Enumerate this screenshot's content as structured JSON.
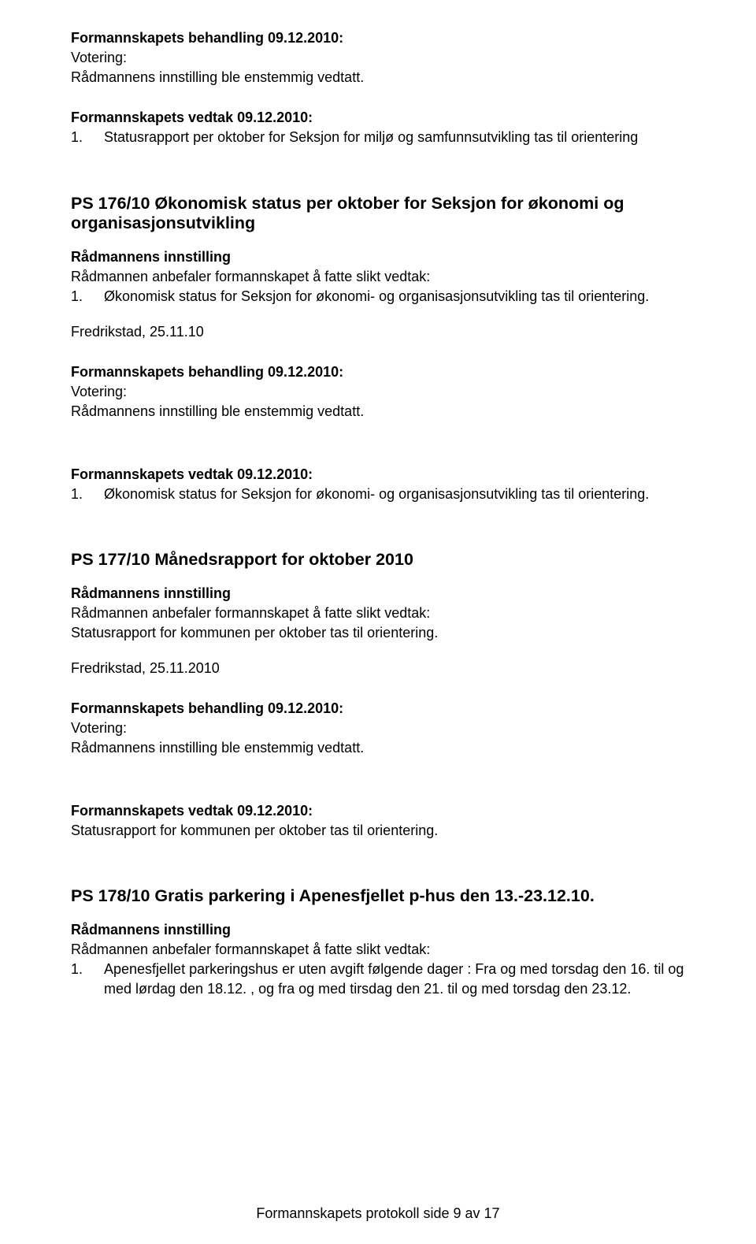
{
  "colors": {
    "background": "#ffffff",
    "text": "#000000"
  },
  "typography": {
    "body_font": "Arial",
    "body_size_pt": 13,
    "heading_size_pt": 16,
    "line_height": 1.4
  },
  "block1": {
    "title": "Formannskapets behandling 09.12.2010:",
    "votering": "Votering:",
    "votering_text": "Rådmannens innstilling ble enstemmig vedtatt."
  },
  "block2": {
    "title": "Formannskapets vedtak 09.12.2010:",
    "item_num": "1.",
    "item_text": "Statusrapport per oktober for Seksjon for miljø og samfunnsutvikling tas til orientering"
  },
  "block3": {
    "heading": "PS 176/10 Økonomisk status per oktober for Seksjon for økonomi og organisasjonsutvikling",
    "sub": "Rådmannens innstilling",
    "intro": "Rådmannen anbefaler formannskapet å fatte slikt vedtak:",
    "item_num": "1.",
    "item_text": "Økonomisk status for Seksjon for økonomi- og organisasjonsutvikling tas til orientering.",
    "date": "Fredrikstad, 25.11.10"
  },
  "block4": {
    "title": "Formannskapets behandling 09.12.2010:",
    "votering": "Votering:",
    "votering_text": "Rådmannens innstilling ble enstemmig vedtatt."
  },
  "block5": {
    "title": "Formannskapets vedtak 09.12.2010:",
    "item_num": "1.",
    "item_text": "Økonomisk status for Seksjon for økonomi- og organisasjonsutvikling tas til orientering."
  },
  "block6": {
    "heading": "PS 177/10 Månedsrapport for oktober 2010",
    "sub": "Rådmannens innstilling",
    "intro": "Rådmannen anbefaler formannskapet å fatte slikt vedtak:",
    "text": "Statusrapport for kommunen per oktober tas til orientering.",
    "date": "Fredrikstad, 25.11.2010"
  },
  "block7": {
    "title": "Formannskapets behandling 09.12.2010:",
    "votering": "Votering:",
    "votering_text": "Rådmannens innstilling ble enstemmig vedtatt."
  },
  "block8": {
    "title": "Formannskapets vedtak 09.12.2010:",
    "text": "Statusrapport for kommunen per oktober tas til orientering."
  },
  "block9": {
    "heading": "PS 178/10 Gratis parkering i Apenesfjellet p-hus den 13.-23.12.10.",
    "sub": "Rådmannens innstilling",
    "intro": "Rådmannen anbefaler formannskapet å fatte slikt vedtak:",
    "item_num": "1.",
    "item_text": "Apenesfjellet parkeringshus er uten avgift følgende dager : Fra og med torsdag den 16. til og med lørdag den 18.12. , og fra og med tirsdag den 21. til og med torsdag den 23.12."
  },
  "footer": "Formannskapets protokoll side 9 av 17"
}
